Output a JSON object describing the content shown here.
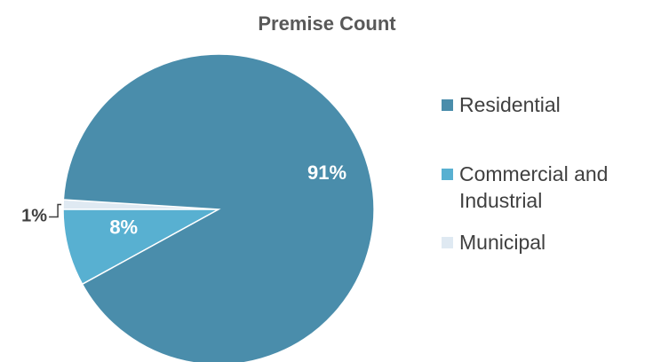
{
  "chart_data": {
    "type": "pie",
    "title": "Premise Count",
    "legend_position": "right",
    "slices": [
      {
        "label": "Residential",
        "legend_lines": [
          "Residential"
        ],
        "value": 91,
        "display": "91%",
        "color": "#4a8dab",
        "label_style": "inside"
      },
      {
        "label": "Commercial and Industrial",
        "legend_lines": [
          "Commercial and",
          "Industrial"
        ],
        "value": 8,
        "display": "8%",
        "color": "#58b0d1",
        "label_style": "inside"
      },
      {
        "label": "Municipal",
        "legend_lines": [
          "Municipal"
        ],
        "value": 1,
        "display": "1%",
        "color": "#dfe9f2",
        "label_style": "outside-leader"
      }
    ]
  }
}
